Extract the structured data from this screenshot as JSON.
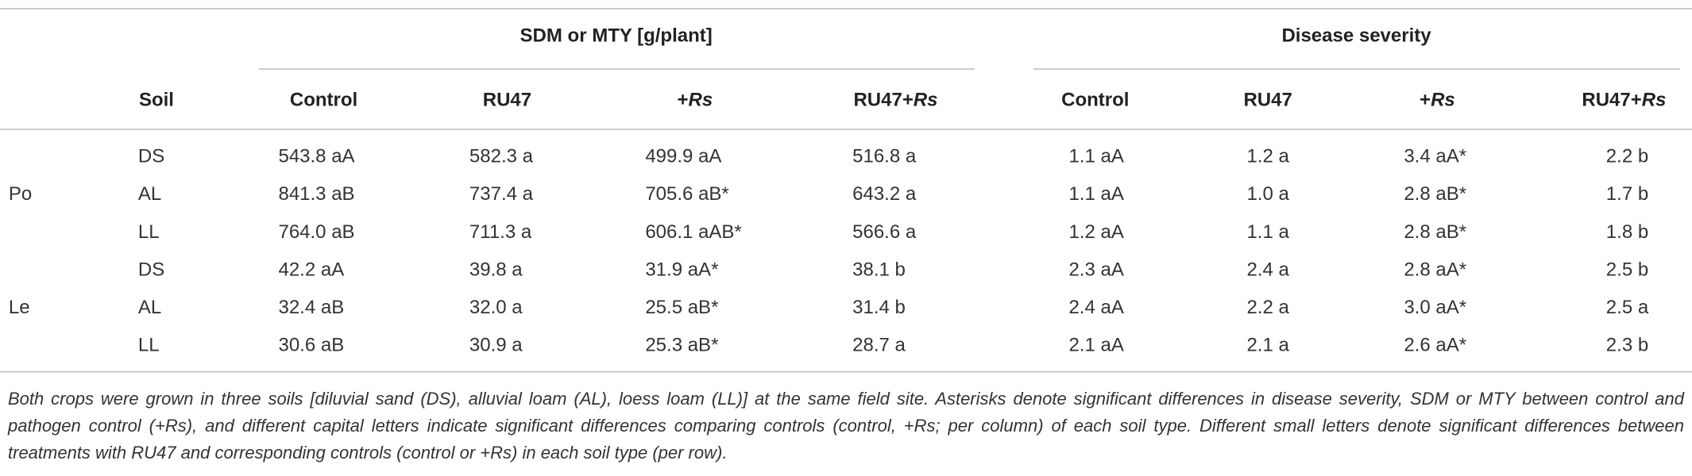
{
  "table": {
    "group_headers": [
      "SDM or MTY [g/plant]",
      "Disease severity"
    ],
    "columns": [
      [
        "Soil"
      ],
      [
        "Control"
      ],
      [
        "RU47"
      ],
      [
        "+",
        "Rs"
      ],
      [
        "RU47+",
        "Rs"
      ],
      [
        "Control"
      ],
      [
        "RU47"
      ],
      [
        "+",
        "Rs"
      ],
      [
        "RU47+",
        "Rs"
      ]
    ],
    "groups": [
      {
        "crop": "Po",
        "rows": [
          [
            "DS",
            "543.8 aA",
            "582.3 a",
            "499.9 aA",
            "516.8 a",
            "1.1 aA",
            "1.2 a",
            "3.4 aA*",
            "2.2 b"
          ],
          [
            "AL",
            "841.3 aB",
            "737.4 a",
            "705.6 aB*",
            "643.2 a",
            "1.1 aA",
            "1.0 a",
            "2.8 aB*",
            "1.7 b"
          ],
          [
            "LL",
            "764.0 aB",
            "711.3 a",
            "606.1 aAB*",
            "566.6 a",
            "1.2 aA",
            "1.1 a",
            "2.8 aB*",
            "1.8 b"
          ]
        ]
      },
      {
        "crop": "Le",
        "rows": [
          [
            "DS",
            "42.2 aA",
            "39.8 a",
            "31.9 aA*",
            "38.1 b",
            "2.3 aA",
            "2.4 a",
            "2.8 aA*",
            "2.5 b"
          ],
          [
            "AL",
            "32.4 aB",
            "32.0 a",
            "25.5 aB*",
            "31.4 b",
            "2.4 aA",
            "2.2 a",
            "3.0 aA*",
            "2.5 a"
          ],
          [
            "LL",
            "30.6 aB",
            "30.9 a",
            "25.3 aB*",
            "28.7 a",
            "2.1 aA",
            "2.1 a",
            "2.6 aA*",
            "2.3 b"
          ]
        ]
      }
    ]
  },
  "footnote": "Both crops were grown in three soils [diluvial sand (DS), alluvial loam (AL), loess loam (LL)] at the same field site. Asterisks denote significant differences in disease severity, SDM or MTY between control and pathogen control (+Rs), and different capital letters indicate significant differences comparing controls (control, +Rs; per column) of each soil type. Different small letters denote significant differences between treatments with RU47 and corresponding controls (control or +Rs) in each soil type (per row)."
}
